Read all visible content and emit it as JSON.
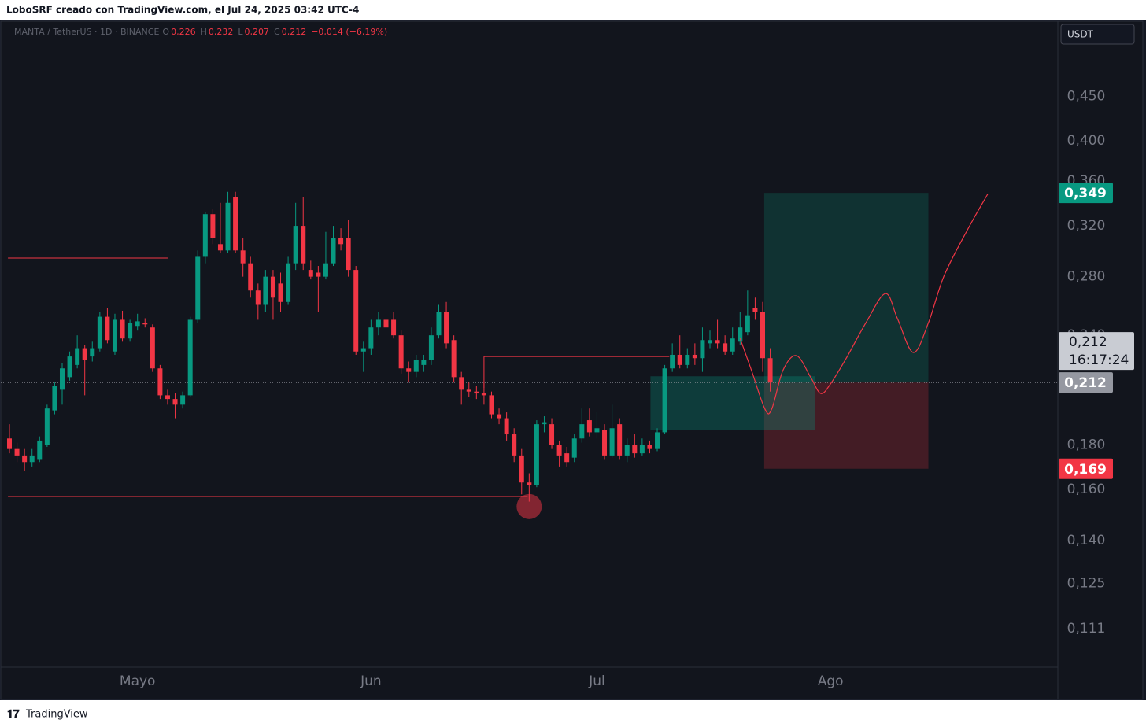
{
  "header": {
    "title": "LoboSRF creado con TradingView.com, el Jul 24, 2025 03:42 UTC-4"
  },
  "footer": {
    "brand": "TradingView"
  },
  "chart_data": {
    "type": "candlestick",
    "legend": {
      "symbol": "MANTA / TetherUS · 1D · BINANCE",
      "fields": [
        {
          "key": "O",
          "value": "0,226"
        },
        {
          "key": "H",
          "value": "0,232"
        },
        {
          "key": "L",
          "value": "0,207"
        },
        {
          "key": "C",
          "value": "0,212"
        }
      ],
      "change": "−0,014 (−6,19%)"
    },
    "currency": "USDT",
    "log_scale": true,
    "grid": false,
    "up_color": "#089981",
    "down_color": "#f23645",
    "ylim": [
      0.1003,
      0.548
    ],
    "yticks": [
      {
        "value": 0.111,
        "label": "0,111"
      },
      {
        "value": 0.125,
        "label": "0,125"
      },
      {
        "value": 0.14,
        "label": "0,140"
      },
      {
        "value": 0.16,
        "label": "0,160"
      },
      {
        "value": 0.18,
        "label": "0,180"
      },
      {
        "value": 0.24,
        "label": "0,240"
      },
      {
        "value": 0.28,
        "label": "0,280"
      },
      {
        "value": 0.32,
        "label": "0,320"
      },
      {
        "value": 0.36,
        "label": "0,360"
      },
      {
        "value": 0.4,
        "label": "0,400"
      },
      {
        "value": 0.45,
        "label": "0,450"
      }
    ],
    "categories": [
      null,
      null,
      null,
      null,
      null,
      null,
      null,
      null,
      null,
      null,
      null,
      null,
      null,
      null,
      null,
      null,
      null,
      "Mayo",
      null,
      null,
      null,
      null,
      null,
      null,
      null,
      null,
      null,
      null,
      null,
      null,
      null,
      null,
      null,
      null,
      null,
      null,
      null,
      null,
      null,
      null,
      null,
      null,
      null,
      null,
      null,
      null,
      null,
      null,
      "Jun",
      null,
      null,
      null,
      null,
      null,
      null,
      null,
      null,
      null,
      null,
      null,
      null,
      null,
      null,
      null,
      null,
      null,
      null,
      null,
      null,
      null,
      null,
      null,
      null,
      null,
      null,
      null,
      null,
      null,
      "Jul",
      null,
      null,
      null,
      null,
      null,
      null,
      null,
      null,
      null,
      null,
      null,
      null,
      null,
      null,
      null,
      null,
      null,
      null,
      null,
      null,
      null,
      null,
      null,
      null,
      null,
      null,
      null,
      null,
      null,
      null,
      "Ago"
    ],
    "open": [
      0.183,
      0.178,
      0.175,
      0.172,
      0.173,
      0.18,
      0.197,
      0.208,
      0.215,
      0.222,
      0.232,
      0.227,
      0.232,
      0.252,
      0.23,
      0.25,
      0.238,
      0.246,
      0.248,
      0.245,
      0.22,
      0.205,
      0.203,
      0.2,
      0.205,
      0.25,
      0.295,
      0.33,
      0.305,
      0.3,
      0.345,
      0.3,
      0.29,
      0.27,
      0.26,
      0.28,
      0.275,
      0.262,
      0.29,
      0.32,
      0.285,
      0.283,
      0.28,
      0.29,
      0.31,
      0.31,
      0.285,
      0.23,
      0.232,
      0.245,
      0.25,
      0.25,
      0.24,
      0.22,
      0.218,
      0.222,
      0.225,
      0.24,
      0.255,
      0.237,
      0.215,
      0.208,
      0.207,
      0.206,
      0.205,
      0.195,
      0.193,
      0.185,
      0.175,
      0.163,
      0.162,
      0.19,
      0.19,
      0.18,
      0.176,
      0.174,
      0.183,
      0.192,
      0.186,
      0.187,
      0.175,
      0.19,
      0.175,
      0.18,
      0.176,
      0.18,
      0.178,
      0.186,
      0.22,
      0.228,
      0.222,
      0.228,
      0.226,
      0.235,
      0.237,
      0.235,
      0.23,
      0.236,
      0.242,
      0.258,
      0.255,
      0.226,
      null,
      null,
      null,
      null,
      null,
      null,
      null,
      null
    ],
    "high": [
      0.19,
      0.181,
      0.178,
      0.178,
      0.184,
      0.2,
      0.212,
      0.223,
      0.23,
      0.24,
      0.234,
      0.236,
      0.255,
      0.258,
      0.254,
      0.256,
      0.25,
      0.254,
      0.251,
      0.247,
      0.222,
      0.208,
      0.206,
      0.207,
      0.252,
      0.3,
      0.332,
      0.335,
      0.34,
      0.35,
      0.35,
      0.31,
      0.295,
      0.275,
      0.285,
      0.285,
      0.283,
      0.295,
      0.34,
      0.345,
      0.292,
      0.288,
      0.315,
      0.32,
      0.318,
      0.325,
      0.288,
      0.236,
      0.25,
      0.255,
      0.256,
      0.255,
      0.243,
      0.224,
      0.228,
      0.228,
      0.245,
      0.26,
      0.262,
      0.24,
      0.218,
      0.212,
      0.21,
      0.212,
      0.207,
      0.198,
      0.196,
      0.188,
      0.178,
      0.167,
      0.192,
      0.194,
      0.193,
      0.182,
      0.179,
      0.185,
      0.198,
      0.198,
      0.196,
      0.19,
      0.2,
      0.193,
      0.183,
      0.185,
      0.183,
      0.182,
      0.188,
      0.222,
      0.235,
      0.24,
      0.232,
      0.235,
      0.245,
      0.243,
      0.25,
      0.24,
      0.245,
      0.255,
      0.27,
      0.265,
      0.262,
      0.232,
      null,
      null,
      null,
      null,
      null,
      null,
      null,
      null
    ],
    "low": [
      0.176,
      0.172,
      0.168,
      0.17,
      0.172,
      0.179,
      0.195,
      0.2,
      0.213,
      0.22,
      0.205,
      0.224,
      0.23,
      0.235,
      0.228,
      0.236,
      0.236,
      0.243,
      0.245,
      0.218,
      0.203,
      0.2,
      0.193,
      0.198,
      0.204,
      0.248,
      0.29,
      0.305,
      0.298,
      0.298,
      0.298,
      0.28,
      0.265,
      0.25,
      0.255,
      0.25,
      0.255,
      0.26,
      0.285,
      0.285,
      0.278,
      0.255,
      0.278,
      0.288,
      0.3,
      0.28,
      0.228,
      0.218,
      0.228,
      0.24,
      0.243,
      0.238,
      0.217,
      0.212,
      0.215,
      0.218,
      0.222,
      0.238,
      0.232,
      0.212,
      0.2,
      0.204,
      0.203,
      0.2,
      0.193,
      0.19,
      0.182,
      0.172,
      0.158,
      0.155,
      0.161,
      0.186,
      0.178,
      0.17,
      0.17,
      0.172,
      0.181,
      0.184,
      0.183,
      0.173,
      0.174,
      0.173,
      0.172,
      0.174,
      0.175,
      0.176,
      0.177,
      0.185,
      0.218,
      0.22,
      0.22,
      0.222,
      0.218,
      0.232,
      0.232,
      0.228,
      0.228,
      0.234,
      0.24,
      0.25,
      0.218,
      0.207,
      null,
      null,
      null,
      null,
      null,
      null,
      null,
      null
    ],
    "close": [
      0.178,
      0.175,
      0.172,
      0.175,
      0.182,
      0.198,
      0.21,
      0.22,
      0.227,
      0.232,
      0.225,
      0.232,
      0.252,
      0.237,
      0.25,
      0.238,
      0.248,
      0.249,
      0.247,
      0.22,
      0.205,
      0.203,
      0.2,
      0.205,
      0.25,
      0.295,
      0.33,
      0.31,
      0.3,
      0.34,
      0.3,
      0.29,
      0.27,
      0.26,
      0.28,
      0.265,
      0.262,
      0.29,
      0.32,
      0.29,
      0.28,
      0.28,
      0.29,
      0.31,
      0.305,
      0.285,
      0.23,
      0.232,
      0.245,
      0.25,
      0.245,
      0.24,
      0.22,
      0.218,
      0.225,
      0.225,
      0.24,
      0.255,
      0.235,
      0.215,
      0.208,
      0.207,
      0.206,
      0.205,
      0.195,
      0.193,
      0.185,
      0.175,
      0.163,
      0.162,
      0.19,
      0.191,
      0.18,
      0.175,
      0.172,
      0.183,
      0.19,
      0.186,
      0.188,
      0.175,
      0.188,
      0.175,
      0.18,
      0.176,
      0.18,
      0.178,
      0.186,
      0.22,
      0.228,
      0.222,
      0.228,
      0.226,
      0.237,
      0.237,
      0.235,
      0.23,
      0.238,
      0.245,
      0.253,
      0.255,
      0.226,
      0.212,
      null,
      null,
      null,
      null,
      null,
      null,
      null,
      null
    ],
    "last_price": {
      "value": 0.212,
      "label": "0,212"
    },
    "countdown": "16:17:24",
    "levels": [
      {
        "value": 0.294
      },
      {
        "value": 0.227
      },
      {
        "value": 0.1571
      }
    ],
    "zone": {
      "top": 0.2155,
      "bottom": 0.1873
    },
    "marker": {
      "value": 0.153
    },
    "position": {
      "entry": 0.212,
      "target": {
        "value": 0.349,
        "label": "0,349"
      },
      "stop": {
        "value": 0.169,
        "label": "0,169"
      }
    },
    "projection": {
      "color": "#f23645",
      "x": [
        97.0,
        98.5,
        100.3,
        101.2,
        102.7,
        104.5,
        106.4,
        107.7,
        109.0,
        111.1,
        113.7,
        116.3,
        117.9,
        120.0,
        122.0,
        124.1,
        127.3,
        129.9
      ],
      "values": [
        0.238,
        0.219,
        0.1977,
        0.1977,
        0.219,
        0.2275,
        0.2147,
        0.206,
        0.2112,
        0.226,
        0.248,
        0.2678,
        0.2507,
        0.2294,
        0.248,
        0.2809,
        0.318,
        0.3482
      ]
    }
  }
}
